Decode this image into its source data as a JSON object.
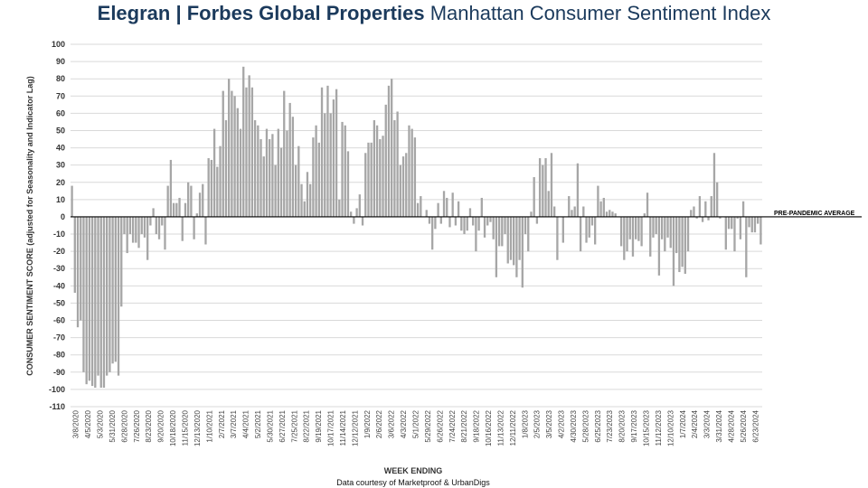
{
  "header": {
    "brand": "Elegran | Forbes Global Properties",
    "subtitle": "Manhattan Consumer Sentiment Index"
  },
  "footer": {
    "credit": "Data courtesy of Marketproof & UrbanDigs"
  },
  "colors": {
    "bar": "#a6a6a6",
    "grid": "#d9d9d9",
    "baseline": "#000000",
    "title": "#1b3a5c"
  },
  "chart_data": {
    "type": "bar",
    "title": "Elegran | Forbes Global Properties Manhattan Consumer Sentiment Index",
    "xlabel": "WEEK ENDING",
    "ylabel": "CONSUMER SENTIMENT SCORE (adjusted for Seasonality and Indicator Lag)",
    "ylim": [
      -110,
      100
    ],
    "yticks": [
      100,
      90,
      80,
      70,
      60,
      50,
      40,
      30,
      20,
      10,
      0,
      -10,
      -20,
      -30,
      -40,
      -50,
      -60,
      -70,
      -80,
      -90,
      -100,
      -110
    ],
    "grid": true,
    "reference_line": {
      "label": "PRE-PANDEMIC  AVERAGE",
      "value": 0
    },
    "x_tick_labels": [
      "3/8/2020",
      "4/5/2020",
      "5/3/2020",
      "5/31/2020",
      "6/28/2020",
      "7/26/2020",
      "8/23/2020",
      "9/20/2020",
      "10/18/2020",
      "11/15/2020",
      "12/13/2020",
      "1/10/2021",
      "2/7/2021",
      "3/7/2021",
      "4/4/2021",
      "5/2/2021",
      "5/30/2021",
      "6/27/2021",
      "7/25/2021",
      "8/22/2021",
      "9/19/2021",
      "10/17/2021",
      "11/14/2021",
      "12/12/2021",
      "1/9/2022",
      "2/6/2022",
      "3/6/2022",
      "4/3/2022",
      "5/1/2022",
      "5/29/2022",
      "6/26/2022",
      "7/24/2022",
      "8/21/2022",
      "9/18/2022",
      "10/16/2022",
      "11/13/2022",
      "12/11/2022",
      "1/8/2023",
      "2/5/2023",
      "3/5/2023",
      "4/2/2023",
      "4/30/2023",
      "5/28/2023",
      "6/25/2023",
      "7/23/2023",
      "8/20/2023",
      "9/17/2023",
      "10/15/2023",
      "11/12/2023",
      "12/10/2023",
      "1/7/2024",
      "2/4/2024",
      "3/3/2024",
      "3/31/2024",
      "4/28/2024",
      "5/26/2024",
      "6/23/2024"
    ],
    "values": [
      18,
      -44,
      -64,
      -60,
      -90,
      -97,
      -95,
      -98,
      -99,
      -92,
      -99,
      -99,
      -92,
      -90,
      -85,
      -84,
      -92,
      -52,
      -10,
      -21,
      -10,
      -15,
      -15,
      -18,
      -10,
      -12,
      -25,
      -5,
      5,
      -10,
      -13,
      -5,
      -19,
      18,
      33,
      8,
      8,
      11,
      -14,
      8,
      20,
      18,
      -13,
      2,
      14,
      19,
      -16,
      34,
      33,
      51,
      29,
      41,
      73,
      56,
      80,
      73,
      70,
      63,
      51,
      87,
      75,
      82,
      75,
      56,
      53,
      45,
      35,
      51,
      45,
      48,
      30,
      51,
      40,
      73,
      50,
      66,
      58,
      30,
      41,
      19,
      9,
      26,
      19,
      46,
      53,
      43,
      75,
      60,
      76,
      60,
      68,
      74,
      10,
      55,
      53,
      38,
      3,
      -4,
      5,
      13,
      -5,
      37,
      43,
      43,
      56,
      53,
      45,
      47,
      65,
      76,
      80,
      56,
      61,
      30,
      35,
      37,
      53,
      51,
      46,
      8,
      12,
      0,
      4,
      -4,
      -19,
      -7,
      8,
      -4,
      15,
      11,
      -6,
      14,
      -5,
      9,
      -8,
      -10,
      -8,
      5,
      -5,
      -20,
      -8,
      11,
      -12,
      -5,
      -3,
      -13,
      -35,
      -17,
      -17,
      -10,
      -27,
      -25,
      -28,
      -35,
      -25,
      -41,
      -10,
      -20,
      3,
      23,
      -4,
      34,
      30,
      34,
      15,
      37,
      6,
      -25,
      0,
      -15,
      0,
      12,
      4,
      6,
      31,
      -20,
      6,
      -15,
      -12,
      -5,
      -16,
      18,
      9,
      11,
      3,
      4,
      3,
      2,
      0,
      -17,
      -25,
      -20,
      -13,
      -23,
      -13,
      -14,
      -17,
      2,
      14,
      -23,
      -12,
      -10,
      -34,
      -13,
      -20,
      -12,
      -18,
      -40,
      -21,
      -32,
      -29,
      -33,
      -20,
      4,
      6,
      -1,
      12,
      -3,
      9,
      -2,
      12,
      37,
      20,
      -1,
      0,
      -19,
      -7,
      -7,
      -20,
      -1,
      -13,
      9,
      -35,
      -6,
      -9,
      -9,
      -4,
      -16
    ]
  }
}
